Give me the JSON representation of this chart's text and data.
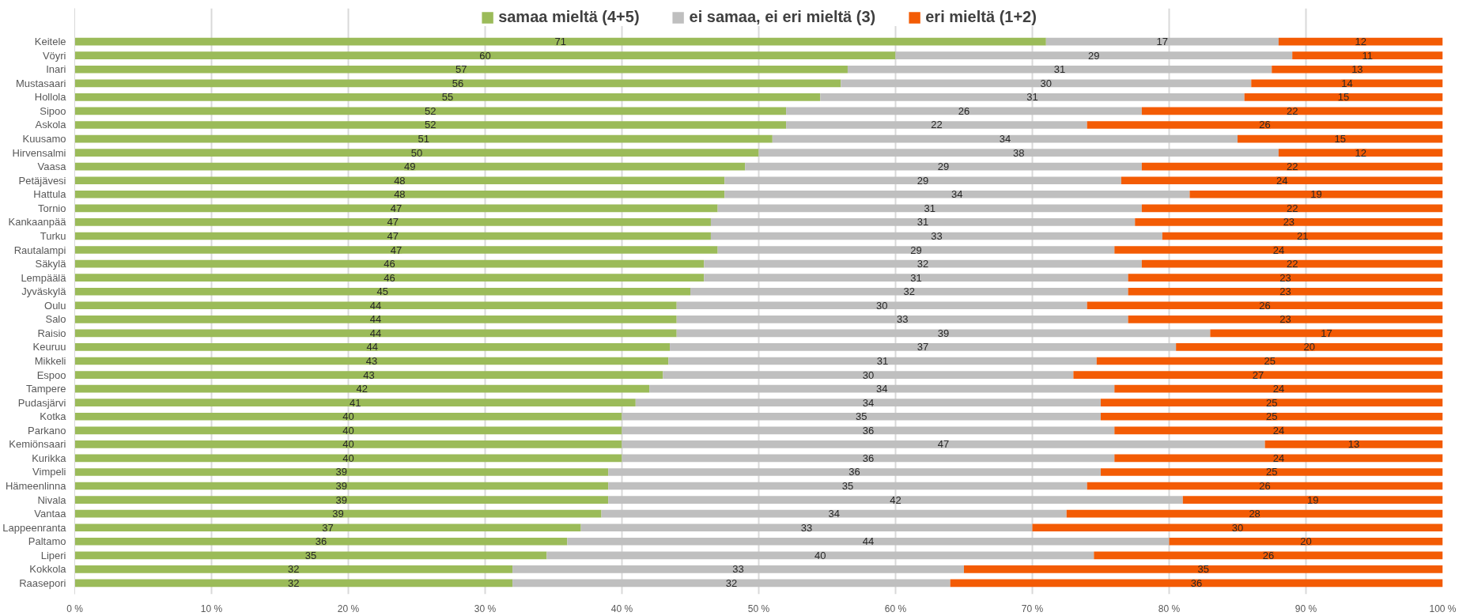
{
  "chart_data": {
    "type": "bar",
    "orientation": "horizontal",
    "stacked": true,
    "categories": [
      "Keitele",
      "Vöyri",
      "Inari",
      "Mustasaari",
      "Hollola",
      "Sipoo",
      "Askola",
      "Kuusamo",
      "Hirvensalmi",
      "Vaasa",
      "Petäjävesi",
      "Hattula",
      "Tornio",
      "Kankaanpää",
      "Turku",
      "Rautalampi",
      "Säkylä",
      "Lempäälä",
      "Jyväskylä",
      "Oulu",
      "Salo",
      "Raisio",
      "Keuruu",
      "Mikkeli",
      "Espoo",
      "Tampere",
      "Pudasjärvi",
      "Kotka",
      "Parkano",
      "Kemiönsaari",
      "Kurikka",
      "Vimpeli",
      "Hämeenlinna",
      "Nivala",
      "Vantaa",
      "Lappeenranta",
      "Paltamo",
      "Liperi",
      "Kokkola",
      "Raasepori"
    ],
    "series": [
      {
        "name": "samaa mieltä (4+5)",
        "color": "#9bbb59",
        "values": [
          71,
          60,
          56.5,
          56,
          54.5,
          52,
          52,
          51,
          50,
          49,
          47.5,
          47.5,
          47,
          46.5,
          46.5,
          47,
          46,
          46,
          45,
          44,
          44,
          44,
          43.5,
          43.4,
          43,
          42,
          41,
          40,
          40,
          40,
          40,
          39,
          39,
          39,
          38.5,
          37,
          36,
          34.5,
          32,
          32
        ],
        "value_labels": [
          "71",
          "60",
          "57",
          "56",
          "55",
          "52",
          "52",
          "51",
          "50",
          "49",
          "48",
          "48",
          "47",
          "47",
          "47",
          "47",
          "46",
          "46",
          "45",
          "44",
          "44",
          "44",
          "44",
          "43",
          "43",
          "42",
          "41",
          "40",
          "40",
          "40",
          "40",
          "39",
          "39",
          "39",
          "39",
          "37",
          "36",
          "35",
          "32",
          "32"
        ]
      },
      {
        "name": "ei samaa, ei eri mieltä (3)",
        "color": "#bfbfbf",
        "values": [
          17,
          29,
          31,
          30,
          31,
          26,
          22,
          34,
          38,
          29,
          29,
          34,
          31,
          31,
          33,
          29,
          32,
          31,
          32,
          30,
          33,
          39,
          37,
          31.3,
          30,
          34,
          34,
          35,
          36,
          47,
          36,
          36,
          35,
          42,
          34,
          33,
          44,
          40,
          33,
          32
        ],
        "value_labels": [
          "17",
          "29",
          "31",
          "30",
          "31",
          "26",
          "22",
          "34",
          "38",
          "29",
          "29",
          "34",
          "31",
          "31",
          "33",
          "29",
          "32",
          "31",
          "32",
          "30",
          "33",
          "39",
          "37",
          "31",
          "30",
          "34",
          "34",
          "35",
          "36",
          "47",
          "36",
          "36",
          "35",
          "42",
          "34",
          "33",
          "44",
          "40",
          "33",
          "32"
        ]
      },
      {
        "name": "eri mieltä (1+2)",
        "color": "#f35b04",
        "values": [
          12,
          11,
          12.5,
          14,
          14.5,
          22,
          26,
          15,
          12,
          22,
          23.5,
          18.5,
          22,
          22.5,
          20.5,
          24,
          22,
          23,
          23,
          26,
          23,
          17,
          19.5,
          25.3,
          27,
          24,
          25,
          25,
          24,
          13,
          24,
          25,
          26,
          19,
          27.5,
          30,
          20,
          25.5,
          35,
          36
        ],
        "value_labels": [
          "12",
          "11",
          "13",
          "14",
          "15",
          "22",
          "26",
          "15",
          "12",
          "22",
          "24",
          "19",
          "22",
          "23",
          "21",
          "24",
          "22",
          "23",
          "23",
          "26",
          "23",
          "17",
          "20",
          "25",
          "27",
          "24",
          "25",
          "25",
          "24",
          "13",
          "24",
          "25",
          "26",
          "19",
          "28",
          "30",
          "20",
          "26",
          "35",
          "36"
        ]
      }
    ],
    "xlim": [
      0,
      100
    ],
    "xticks": [
      {
        "value": 0,
        "label": "0 %"
      },
      {
        "value": 10,
        "label": "10 %"
      },
      {
        "value": 20,
        "label": "20 %"
      },
      {
        "value": 30,
        "label": "30 %"
      },
      {
        "value": 40,
        "label": "40 %"
      },
      {
        "value": 50,
        "label": "50 %"
      },
      {
        "value": 60,
        "label": "60 %"
      },
      {
        "value": 70,
        "label": "70 %"
      },
      {
        "value": 80,
        "label": "80 %"
      },
      {
        "value": 90,
        "label": "90 %"
      },
      {
        "value": 100,
        "label": "100 %"
      }
    ],
    "grid": "x",
    "legend": "top"
  }
}
